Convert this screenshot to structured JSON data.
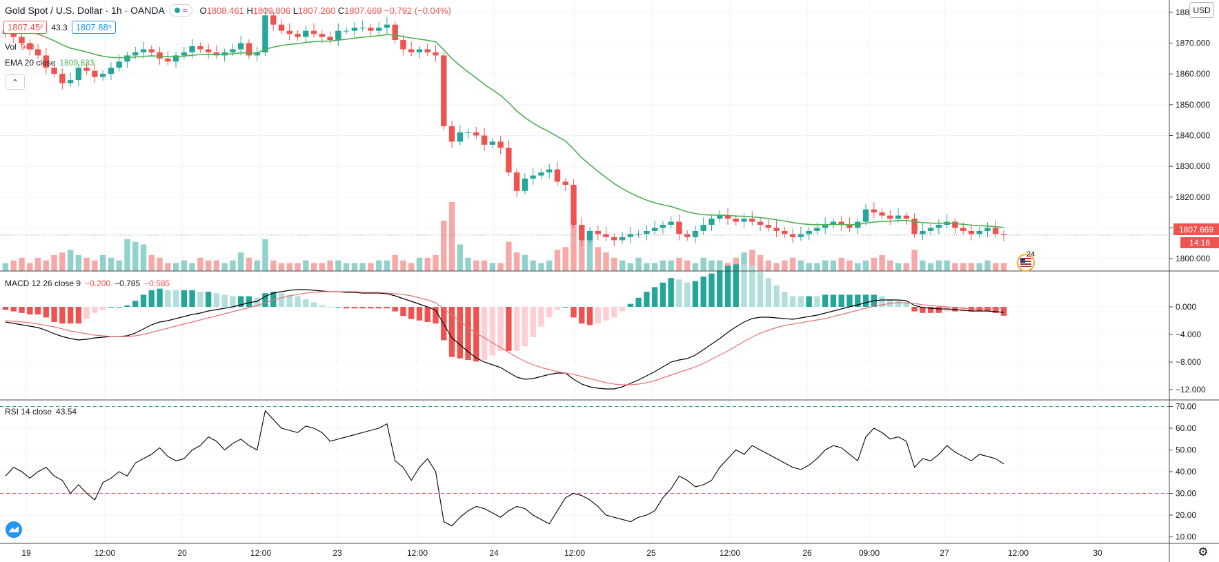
{
  "header": {
    "symbol": "Gold Spot / U.S. Dollar · 1h · OANDA",
    "status_glyph": "≈",
    "o_label": "O",
    "o_value": "1808.461",
    "h_label": "H",
    "h_value": "1809.806",
    "l_label": "L",
    "l_value": "1807.260",
    "c_label": "C",
    "c_value": "1807.669",
    "change": "−0.792 (−0.04%)",
    "bid": "1807.45²",
    "spread": "43.3",
    "ask": "1807.88⁵",
    "vol_label": "Vol",
    "vol_value": "940",
    "ema_label": "EMA 20 close",
    "ema_value": "1809.833",
    "currency": "USD",
    "collapse_glyph": "⌃"
  },
  "macd_legend": {
    "label": "MACD 12 26 close 9",
    "v1": "−0.200",
    "v2": "−0.785",
    "v3": "−0.585"
  },
  "rsi_legend": {
    "label": "RSI 14 close",
    "value": "43.54"
  },
  "price_badge": {
    "price": "1807.669",
    "countdown": "14:16"
  },
  "event_badge": {
    "count": "24"
  },
  "colors": {
    "up": "#26a69a",
    "down": "#ef5350",
    "ema": "#4caf50",
    "macd": "#000000",
    "signal": "#e57373",
    "rsi": "#000000",
    "grid": "#f0f3fa"
  },
  "chart_data": [
    {
      "type": "candlestick",
      "title": "Gold Spot / U.S. Dollar · 1h · OANDA",
      "ylim": [
        1796,
        1884
      ],
      "yticks": [
        "1880.000",
        "1870.000",
        "1860.000",
        "1850.000",
        "1840.000",
        "1830.000",
        "1820.000",
        "1810.000",
        "1800.000"
      ],
      "ytick_values": [
        1880,
        1870,
        1860,
        1850,
        1840,
        1830,
        1820,
        1810,
        1800
      ],
      "xticks": [
        "19",
        "12:00",
        "20",
        "12:00",
        "23",
        "12:00",
        "24",
        "12:00",
        "25",
        "12:00",
        "26",
        "09:00",
        "27",
        "12:00",
        "30"
      ],
      "close_series": [
        1873,
        1872,
        1870,
        1868,
        1866,
        1862,
        1860,
        1857,
        1858,
        1862,
        1861,
        1859,
        1860,
        1862,
        1864,
        1866,
        1867,
        1868,
        1867,
        1865,
        1864,
        1866,
        1867,
        1869,
        1868,
        1867,
        1866,
        1867,
        1868,
        1870,
        1866,
        1867,
        1879,
        1876,
        1874,
        1873,
        1872,
        1874,
        1873,
        1872,
        1871,
        1874,
        1874,
        1875,
        1875,
        1874,
        1875,
        1876,
        1871,
        1868,
        1867,
        1868,
        1867,
        1866,
        1843,
        1838,
        1841,
        1841,
        1840,
        1837,
        1838,
        1836,
        1828,
        1822,
        1826,
        1827,
        1828,
        1829,
        1825,
        1824,
        1811,
        1806,
        1809,
        1808,
        1807,
        1806,
        1807,
        1808,
        1808,
        1809,
        1810,
        1811,
        1812,
        1808,
        1807,
        1809,
        1811,
        1813,
        1814,
        1813,
        1812,
        1813,
        1812,
        1811,
        1810,
        1809,
        1808,
        1807,
        1808,
        1809,
        1810,
        1811,
        1812,
        1811,
        1810,
        1812,
        1816,
        1815,
        1814,
        1813,
        1814,
        1813,
        1808,
        1809,
        1810,
        1811,
        1812,
        1810,
        1809,
        1808,
        1809,
        1810,
        1808,
        1807.669
      ],
      "ema20_last": 1809.833
    },
    {
      "type": "bar",
      "title": "Vol",
      "values_relative": [
        3,
        4,
        5,
        3,
        5,
        4,
        6,
        7,
        8,
        6,
        5,
        4,
        6,
        5,
        4,
        12,
        11,
        10,
        6,
        5,
        3,
        3,
        4,
        3,
        5,
        4,
        4,
        3,
        4,
        7,
        5,
        4,
        12,
        4,
        3,
        3,
        3,
        4,
        3,
        3,
        4,
        4,
        3,
        3,
        3,
        3,
        4,
        4,
        6,
        4,
        3,
        5,
        5,
        6,
        19,
        26,
        10,
        5,
        4,
        4,
        3,
        3,
        11,
        7,
        6,
        4,
        3,
        4,
        8,
        9,
        19,
        12,
        13,
        9,
        7,
        5,
        4,
        3,
        5,
        3,
        3,
        4,
        4,
        5,
        4,
        3,
        5,
        4,
        4,
        3,
        5,
        7,
        8,
        6,
        4,
        3,
        4,
        5,
        4,
        3,
        3,
        4,
        4,
        5,
        4,
        3,
        4,
        5,
        6,
        4,
        3,
        3,
        8,
        4,
        3,
        4,
        4,
        3,
        3,
        3,
        3,
        4,
        3,
        3
      ],
      "last_value": "940"
    },
    {
      "type": "line",
      "title": "MACD 12 26 close 9",
      "ylim": [
        -13.5,
        5.2
      ],
      "yticks": [
        "0.000",
        "−4.000",
        "−8.000",
        "−12.000"
      ],
      "ytick_values": [
        0,
        -4,
        -8,
        -12
      ],
      "series": [
        {
          "name": "MACD",
          "values": [
            -2.2,
            -2.4,
            -2.6,
            -2.8,
            -3.0,
            -3.4,
            -3.9,
            -4.3,
            -4.6,
            -4.8,
            -4.7,
            -4.5,
            -4.4,
            -4.3,
            -4.3,
            -4.2,
            -3.8,
            -3.2,
            -2.6,
            -2.2,
            -2.0,
            -1.7,
            -1.4,
            -1.1,
            -0.9,
            -0.6,
            -0.4,
            -0.2,
            0.0,
            0.3,
            0.6,
            0.8,
            1.5,
            2.0,
            2.2,
            2.4,
            2.5,
            2.5,
            2.4,
            2.3,
            2.2,
            2.2,
            2.1,
            2.1,
            2.0,
            2.0,
            2.0,
            1.9,
            1.6,
            1.2,
            0.8,
            0.4,
            0.0,
            -0.5,
            -2.5,
            -4.5,
            -5.5,
            -6.5,
            -7.4,
            -8.0,
            -8.4,
            -8.8,
            -9.5,
            -10.2,
            -10.5,
            -10.4,
            -10.1,
            -9.8,
            -9.6,
            -9.6,
            -10.5,
            -11.2,
            -11.6,
            -11.8,
            -11.9,
            -11.9,
            -11.6,
            -11.1,
            -10.6,
            -10.0,
            -9.4,
            -8.7,
            -8.0,
            -7.7,
            -7.5,
            -7.0,
            -6.2,
            -5.4,
            -4.6,
            -3.7,
            -2.9,
            -2.2,
            -1.7,
            -1.5,
            -1.5,
            -1.6,
            -1.7,
            -1.8,
            -1.6,
            -1.4,
            -1.2,
            -0.9,
            -0.6,
            -0.3,
            0.0,
            0.3,
            0.6,
            0.9,
            1.0,
            1.0,
            1.0,
            0.9,
            0.2,
            -0.1,
            -0.2,
            -0.3,
            -0.3,
            -0.4,
            -0.5,
            -0.6,
            -0.6,
            -0.6,
            -0.7,
            -0.785
          ]
        },
        {
          "name": "Signal",
          "values": [
            -2.0,
            -2.1,
            -2.2,
            -2.3,
            -2.5,
            -2.7,
            -2.9,
            -3.2,
            -3.5,
            -3.7,
            -3.9,
            -4.1,
            -4.2,
            -4.3,
            -4.3,
            -4.3,
            -4.2,
            -4.0,
            -3.7,
            -3.4,
            -3.1,
            -2.8,
            -2.5,
            -2.2,
            -1.9,
            -1.6,
            -1.3,
            -1.0,
            -0.7,
            -0.4,
            -0.1,
            0.2,
            0.6,
            1.0,
            1.3,
            1.6,
            1.8,
            2.0,
            2.1,
            2.2,
            2.2,
            2.2,
            2.2,
            2.2,
            2.1,
            2.1,
            2.1,
            2.0,
            1.9,
            1.8,
            1.6,
            1.3,
            1.0,
            0.6,
            -0.3,
            -1.2,
            -2.1,
            -3.0,
            -3.8,
            -4.5,
            -5.2,
            -5.9,
            -6.6,
            -7.3,
            -7.9,
            -8.4,
            -8.8,
            -9.1,
            -9.4,
            -9.6,
            -9.8,
            -10.1,
            -10.4,
            -10.7,
            -11.0,
            -11.2,
            -11.3,
            -11.3,
            -11.2,
            -11.0,
            -10.7,
            -10.3,
            -9.9,
            -9.5,
            -9.1,
            -8.7,
            -8.2,
            -7.6,
            -7.0,
            -6.4,
            -5.7,
            -5.0,
            -4.4,
            -3.8,
            -3.4,
            -3.0,
            -2.7,
            -2.5,
            -2.3,
            -2.1,
            -1.9,
            -1.7,
            -1.4,
            -1.1,
            -0.8,
            -0.5,
            -0.2,
            0.1,
            0.3,
            0.5,
            0.6,
            0.6,
            0.5,
            0.3,
            0.2,
            0.1,
            0.0,
            -0.1,
            -0.2,
            -0.3,
            -0.3,
            -0.3,
            -0.3,
            -0.2
          ]
        }
      ],
      "histogram_last": "−0.585"
    },
    {
      "type": "line",
      "title": "RSI 14 close",
      "ylim": [
        7,
        73
      ],
      "yticks": [
        "70.00",
        "60.00",
        "50.00",
        "40.00",
        "30.00",
        "20.00",
        "10.00"
      ],
      "ytick_values": [
        70,
        60,
        50,
        40,
        30,
        20,
        10
      ],
      "bands": [
        70,
        30
      ],
      "series": [
        {
          "name": "RSI",
          "values": [
            38,
            42,
            40,
            37,
            40,
            42,
            38,
            36,
            30,
            34,
            30,
            27,
            35,
            37,
            40,
            38,
            44,
            46,
            48,
            51,
            47,
            45,
            46,
            50,
            52,
            56,
            54,
            50,
            53,
            55,
            52,
            50,
            68,
            64,
            60,
            59,
            58,
            61,
            60,
            58,
            54,
            55,
            56,
            57,
            58,
            59,
            60,
            62,
            45,
            42,
            36,
            42,
            46,
            40,
            17,
            15,
            19,
            22,
            24,
            23,
            21,
            19,
            22,
            24,
            23,
            20,
            18,
            16,
            22,
            28,
            30,
            29,
            27,
            24,
            20,
            19,
            18,
            17,
            19,
            20,
            22,
            28,
            32,
            38,
            36,
            33,
            34,
            36,
            42,
            46,
            50,
            48,
            52,
            50,
            48,
            46,
            44,
            42,
            41,
            43,
            46,
            50,
            52,
            51,
            48,
            45,
            56,
            60,
            58,
            55,
            56,
            54,
            42,
            46,
            45,
            48,
            52,
            49,
            47,
            45,
            48,
            47,
            46,
            43.54
          ]
        }
      ],
      "last_value": "43.54"
    }
  ]
}
